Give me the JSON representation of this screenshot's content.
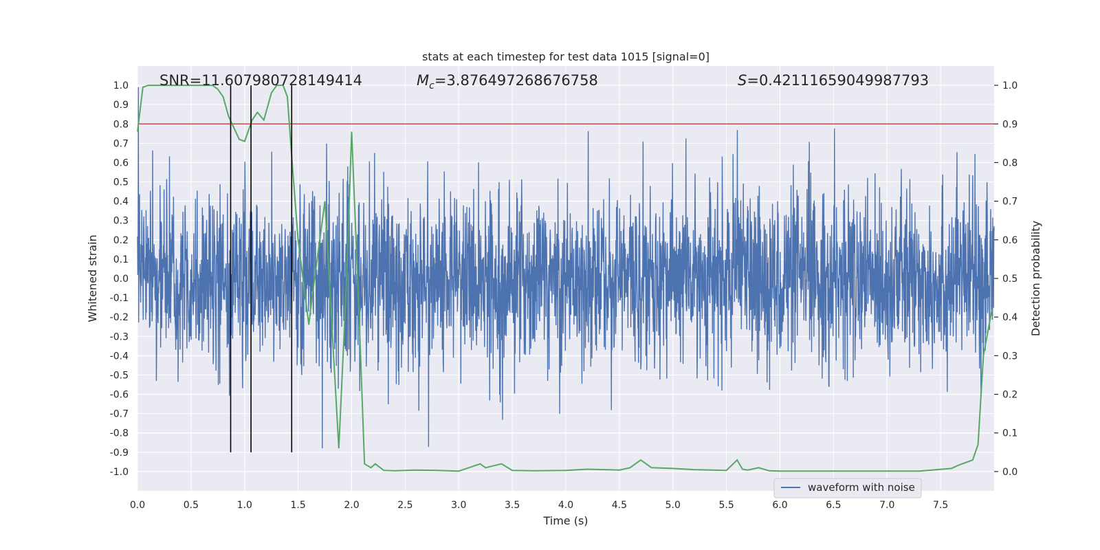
{
  "chart_data": {
    "type": "line",
    "title": "stats at each timestep for test data 1015 [signal=0]",
    "xlabel": "Time (s)",
    "ylabel": "Whitened strain",
    "ylabel_right": "Detection probability",
    "xlim": [
      0.0,
      8.0
    ],
    "ylim": [
      -1.1,
      1.1
    ],
    "ylim_right": [
      -0.05,
      1.05
    ],
    "x_ticks": [
      "0.0",
      "0.5",
      "1.0",
      "1.5",
      "2.0",
      "2.5",
      "3.0",
      "3.5",
      "4.0",
      "4.5",
      "5.0",
      "5.5",
      "6.0",
      "6.5",
      "7.0",
      "7.5"
    ],
    "y_ticks": [
      "1.0",
      "0.9",
      "0.8",
      "0.7",
      "0.6",
      "0.5",
      "0.4",
      "0.3",
      "0.2",
      "0.1",
      "0.0",
      "-0.1",
      "-0.2",
      "-0.3",
      "-0.4",
      "-0.5",
      "-0.6",
      "-0.7",
      "-0.8",
      "-0.9",
      "-1.0"
    ],
    "y_ticks_right": [
      "1.0",
      "0.9",
      "0.8",
      "0.7",
      "0.6",
      "0.5",
      "0.4",
      "0.3",
      "0.2",
      "0.1",
      "0.0"
    ],
    "grid": true,
    "legend_position": "bottom-right",
    "annotations": {
      "snr": "SNR=11.607980728149414",
      "mc_symbol": "M",
      "mc_sub": "c",
      "mc_value": "=3.876497268676758",
      "s_symbol": "S",
      "s_value": "=0.42111659049987793"
    },
    "series": [
      {
        "name": "waveform with noise",
        "color": "#4c72b0",
        "axis": "left",
        "kind": "noise",
        "typical_amplitude": 0.35,
        "x_range": [
          0.0,
          8.0
        ]
      },
      {
        "name": "detection probability",
        "color": "#55a868",
        "axis": "right",
        "x": [
          0.0,
          0.05,
          0.1,
          0.2,
          0.3,
          0.4,
          0.5,
          0.6,
          0.7,
          0.75,
          0.8,
          0.85,
          0.95,
          1.0,
          1.07,
          1.12,
          1.18,
          1.25,
          1.3,
          1.36,
          1.4,
          1.45,
          1.5,
          1.6,
          1.63,
          1.75,
          1.88,
          1.95,
          2.0,
          2.07,
          2.12,
          2.18,
          2.22,
          2.3,
          2.4,
          2.6,
          2.8,
          3.0,
          3.2,
          3.25,
          3.4,
          3.5,
          3.7,
          4.0,
          4.2,
          4.5,
          4.6,
          4.65,
          4.7,
          4.8,
          5.0,
          5.2,
          5.5,
          5.6,
          5.65,
          5.7,
          5.8,
          5.9,
          6.0,
          6.5,
          7.0,
          7.3,
          7.6,
          7.68,
          7.8,
          7.85,
          7.9,
          7.98
        ],
        "values": [
          0.88,
          0.995,
          1.0,
          1.0,
          1.0,
          1.0,
          1.0,
          1.0,
          1.0,
          0.99,
          0.97,
          0.92,
          0.86,
          0.855,
          0.91,
          0.93,
          0.91,
          0.98,
          1.0,
          1.0,
          0.97,
          0.78,
          0.6,
          0.38,
          0.45,
          0.7,
          0.06,
          0.48,
          0.88,
          0.4,
          0.02,
          0.01,
          0.02,
          0.003,
          0.002,
          0.004,
          0.003,
          0.001,
          0.02,
          0.01,
          0.02,
          0.003,
          0.002,
          0.003,
          0.006,
          0.004,
          0.01,
          0.02,
          0.03,
          0.01,
          0.008,
          0.005,
          0.003,
          0.03,
          0.006,
          0.004,
          0.01,
          0.002,
          0.001,
          0.001,
          0.001,
          0.001,
          0.008,
          0.018,
          0.03,
          0.07,
          0.3,
          0.42
        ]
      }
    ],
    "hlines": [
      {
        "name": "detection threshold",
        "axis": "right",
        "value": 0.9,
        "color": "#c44e52"
      }
    ],
    "vlines": [
      {
        "name": "marker",
        "x": 0.87,
        "y_range": [
          -0.9,
          1.0
        ],
        "color": "#000000"
      },
      {
        "name": "marker",
        "x": 1.06,
        "y_range": [
          -0.9,
          1.0
        ],
        "color": "#000000"
      },
      {
        "name": "marker",
        "x": 1.44,
        "y_range": [
          -0.9,
          1.0
        ],
        "color": "#000000"
      }
    ]
  }
}
